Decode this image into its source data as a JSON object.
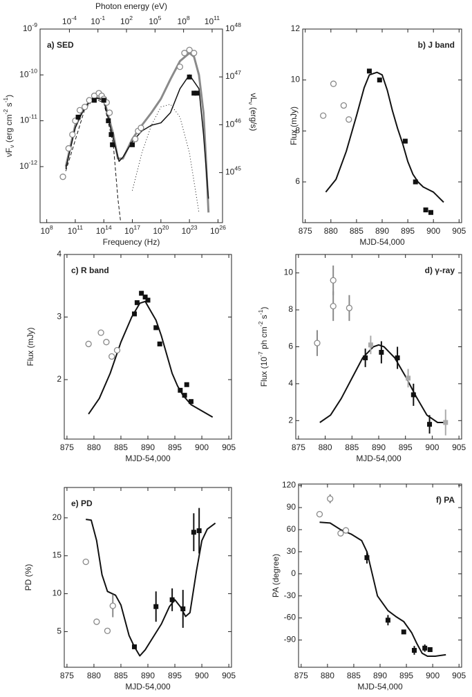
{
  "chart_data": [
    {
      "type": "scatter",
      "panel_label": "a) SED",
      "xlabel": "Frequency (Hz)",
      "ylabel": "νF_ν (erg cm^-2 s^-1)",
      "x2label": "Photon energy (eV)",
      "y2label": "νL_ν (erg/s)",
      "xlog": true,
      "ylog": true,
      "xlim": [
        20000000.0,
        3e+26
      ],
      "ylim": [
        6e-14,
        1e-09
      ],
      "x2lim": [
        8.3e-08,
        1240000000000.0
      ],
      "y2lim": [
        9e+43,
        1e+48
      ],
      "xticks": [
        {
          "value": 100000000.0,
          "label": "10^8"
        },
        {
          "value": 100000000000.0,
          "label": "10^11"
        },
        {
          "value": 100000000000000.0,
          "label": "10^14"
        },
        {
          "value": 1e+17,
          "label": "10^17"
        },
        {
          "value": 1e+20,
          "label": "10^20"
        },
        {
          "value": 1e+23,
          "label": "10^23"
        },
        {
          "value": 1e+26,
          "label": "10^26"
        }
      ],
      "x2ticks": [
        {
          "value": 0.0001,
          "label": "10^-4"
        },
        {
          "value": 0.1,
          "label": "10^-1"
        },
        {
          "value": 100,
          "label": "10^2"
        },
        {
          "value": 100000,
          "label": "10^5"
        },
        {
          "value": 100000000.0,
          "label": "10^8"
        },
        {
          "value": 100000000000.0,
          "label": "10^11"
        }
      ],
      "yticks": [
        {
          "value": 1e-12,
          "label": "10^-12"
        },
        {
          "value": 1e-11,
          "label": "10^-11"
        },
        {
          "value": 1e-10,
          "label": "10^-10"
        },
        {
          "value": 1e-09,
          "label": "10^-9"
        }
      ],
      "y2ticks": [
        {
          "value": 1e+45,
          "label": "10^45"
        },
        {
          "value": 1e+46,
          "label": "10^46"
        },
        {
          "value": 1e+47,
          "label": "10^47"
        },
        {
          "value": 1e+48,
          "label": "10^48"
        }
      ],
      "series": [
        {
          "mode": "line",
          "color": "#8a8a8a",
          "width": 3,
          "x": [
            10000000000.0,
            100000000000.0,
            1000000000000.0,
            10000000000000.0,
            100000000000000.0,
            1000000000000000.0,
            3000000000000000.0,
            1e+16,
            1e+17,
            1e+18,
            1e+19,
            1e+20,
            1e+21,
            1e+22,
            1e+23,
            3e+23,
            1e+24,
            3e+24,
            6e+24,
            1e+25
          ],
          "values": [
            1e-12,
            8e-12,
            2e-11,
            3.3e-11,
            3e-11,
            5e-12,
            1.5e-12,
            1.5e-12,
            4e-12,
            8e-12,
            1.5e-11,
            3e-11,
            8e-11,
            2e-10,
            3e-10,
            2.5e-10,
            1e-10,
            1.5e-11,
            1e-12,
            1e-13
          ]
        },
        {
          "mode": "line",
          "color": "#111",
          "width": 1.5,
          "x": [
            10000000000.0,
            100000000000.0,
            1000000000000.0,
            10000000000000.0,
            100000000000000.0,
            1000000000000000.0,
            4000000000000000.0,
            1e+16,
            1e+17,
            1e+18,
            1e+19,
            1e+20,
            1e+21,
            1e+22,
            1e+23,
            1e+24,
            3e+24,
            1e+25
          ],
          "values": [
            9e-13,
            7e-12,
            2e-11,
            3.2e-11,
            2.8e-11,
            4e-12,
            1.3e-12,
            1.6e-12,
            3.5e-12,
            6e-12,
            8e-12,
            9e-12,
            1.5e-11,
            5e-11,
            1e-10,
            5e-11,
            5e-12,
            2e-13
          ]
        },
        {
          "mode": "line",
          "color": "#111",
          "width": 1,
          "dash": "1,3",
          "x": [
            1e+17,
            1e+18,
            1e+19,
            1e+20,
            1e+21,
            1e+22,
            1e+23,
            1e+24
          ],
          "values": [
            3e-13,
            2e-12,
            8e-12,
            2e-11,
            2.3e-11,
            1.2e-11,
            2e-12,
            1e-13
          ]
        },
        {
          "mode": "line",
          "color": "#111",
          "width": 1,
          "dash": "5,3",
          "x": [
            10000000000.0,
            1000000000000.0,
            10000000000000.0,
            100000000000000.0,
            1000000000000000.0,
            3000000000000000.0,
            6000000000000000.0
          ],
          "values": [
            8e-13,
            1.8e-11,
            3e-11,
            2.5e-11,
            3e-12,
            2e-13,
            6e-14
          ]
        },
        {
          "mode": "marker",
          "marker": "open-circle",
          "color": "#888",
          "x": [
            5000000000.0,
            20000000000.0,
            50000000000.0,
            100000000000.0,
            300000000000.0,
            1000000000000.0,
            3000000000000.0,
            10000000000000.0,
            30000000000000.0,
            60000000000000.0,
            100000000000000.0,
            200000000000000.0,
            400000000000000.0,
            2e+17,
            4e+17,
            8e+17,
            1e+22,
            3e+22,
            1e+23,
            3e+23
          ],
          "values": [
            6e-13,
            2.5e-12,
            5e-12,
            1e-11,
            1.7e-11,
            2e-11,
            2.8e-11,
            3.5e-11,
            4e-11,
            3.5e-11,
            3e-11,
            2.5e-11,
            1.5e-11,
            4e-12,
            6e-12,
            7e-12,
            1.5e-10,
            3e-10,
            3.5e-10,
            3e-10
          ]
        },
        {
          "mode": "marker",
          "marker": "square",
          "color": "#111",
          "x": [
            200000000000.0,
            10000000000000.0,
            100000000000000.0,
            300000000000000.0,
            600000000000000.0,
            800000000000000.0,
            1e+17,
            1e+23,
            3e+23,
            6e+23
          ],
          "values": [
            1.2e-11,
            2.8e-11,
            2.8e-11,
            1e-11,
            5e-12,
            3e-12,
            3e-12,
            9e-11,
            4e-11,
            4e-11
          ]
        }
      ]
    },
    {
      "type": "scatter",
      "panel_label": "b) J band",
      "xlabel": "MJD-54,000",
      "ylabel": "Flux (mJy)",
      "xlim": [
        874.5,
        905.5
      ],
      "ylim": [
        4.4,
        12
      ],
      "xticks": [
        875,
        880,
        885,
        890,
        895,
        900,
        905
      ],
      "yticks": [
        6,
        8,
        10,
        12
      ],
      "series": [
        {
          "mode": "line",
          "color": "#111",
          "width": 2,
          "x": [
            879,
            881,
            883,
            885,
            886.5,
            887.5,
            889,
            890,
            891,
            892,
            893,
            894,
            895,
            896,
            897,
            898,
            899,
            900,
            901,
            902
          ],
          "values": [
            5.6,
            6.1,
            7.2,
            8.6,
            9.7,
            10.2,
            10.3,
            10.2,
            9.6,
            8.8,
            8.1,
            7.5,
            6.8,
            6.3,
            6.0,
            5.8,
            5.7,
            5.6,
            5.4,
            5.2
          ]
        },
        {
          "mode": "marker",
          "marker": "open-circle",
          "color": "#888",
          "x": [
            878.5,
            880.5,
            882.5,
            883.5
          ],
          "values": [
            8.6,
            9.85,
            9.0,
            8.45
          ]
        },
        {
          "mode": "marker",
          "marker": "square",
          "color": "#111",
          "x": [
            887.5,
            889.5,
            894.5,
            896.5,
            898.5,
            899.5
          ],
          "values": [
            10.35,
            10.0,
            7.6,
            6.0,
            4.9,
            4.8
          ]
        }
      ]
    },
    {
      "type": "scatter",
      "panel_label": "c) R band",
      "xlabel": "MJD-54,000",
      "ylabel": "Flux (mJy)",
      "xlim": [
        874.5,
        905.5
      ],
      "ylim": [
        1.05,
        4
      ],
      "xticks": [
        875,
        880,
        885,
        890,
        895,
        900,
        905
      ],
      "yticks": [
        2,
        3,
        4
      ],
      "series": [
        {
          "mode": "line",
          "color": "#111",
          "width": 2,
          "x": [
            879,
            881,
            883,
            885,
            887,
            888.5,
            889.5,
            890.5,
            891.5,
            892.5,
            893.5,
            894.5,
            895.5,
            896.5,
            898,
            900,
            902
          ],
          "values": [
            1.45,
            1.7,
            2.1,
            2.6,
            3.0,
            3.22,
            3.25,
            3.1,
            2.95,
            2.7,
            2.4,
            2.1,
            1.9,
            1.75,
            1.6,
            1.5,
            1.4
          ]
        },
        {
          "mode": "marker",
          "marker": "open-circle",
          "color": "#888",
          "x": [
            879,
            881.3,
            882.3,
            883.3,
            884.3
          ],
          "values": [
            2.57,
            2.75,
            2.6,
            2.37,
            2.47
          ]
        },
        {
          "mode": "marker",
          "marker": "square",
          "color": "#111",
          "x": [
            887.5,
            888,
            888.8,
            889.5,
            890,
            891.5,
            892.2,
            896,
            896.8,
            897.2,
            898
          ],
          "values": [
            3.05,
            3.23,
            3.38,
            3.32,
            3.27,
            2.83,
            2.57,
            1.83,
            1.75,
            1.92,
            1.65
          ]
        }
      ]
    },
    {
      "type": "scatter",
      "panel_label": "d) γ-ray",
      "xlabel": "MJD-54,000",
      "ylabel": "Flux (10^-7 ph cm^-2 s^-1)",
      "xlim": [
        874.5,
        905.5
      ],
      "ylim": [
        1.0,
        11
      ],
      "xticks": [
        875,
        880,
        885,
        890,
        895,
        900,
        905
      ],
      "yticks": [
        2,
        4,
        6,
        8,
        10
      ],
      "series": [
        {
          "mode": "line",
          "color": "#111",
          "width": 2,
          "x": [
            879,
            881,
            883,
            885,
            887,
            889,
            890,
            891,
            893,
            895,
            897,
            899,
            901,
            902.5
          ],
          "values": [
            1.9,
            2.3,
            3.2,
            4.3,
            5.4,
            6.0,
            6.1,
            6.0,
            5.4,
            4.4,
            3.3,
            2.3,
            1.9,
            1.9
          ]
        },
        {
          "mode": "marker",
          "marker": "open-circle",
          "color": "#888",
          "x": [
            878.5,
            881.5,
            881.5,
            884.5
          ],
          "values": [
            6.2,
            9.6,
            8.2,
            8.1
          ],
          "errors": [
            0.7,
            0.8,
            0.8,
            0.7
          ]
        },
        {
          "mode": "marker",
          "marker": "square",
          "color": "#aaa",
          "x": [
            888.5,
            895.5,
            902.5
          ],
          "values": [
            6.1,
            4.3,
            1.9
          ],
          "errors": [
            0.5,
            0.5,
            0.7
          ]
        },
        {
          "mode": "marker",
          "marker": "square",
          "color": "#111",
          "x": [
            887.5,
            890.5,
            893.5,
            896.5,
            899.5
          ],
          "values": [
            5.4,
            5.7,
            5.4,
            3.4,
            1.8
          ],
          "errors": [
            0.5,
            0.6,
            0.6,
            0.6,
            0.5
          ]
        }
      ]
    },
    {
      "type": "scatter",
      "panel_label": "e) PD",
      "xlabel": "MJD-54,000",
      "ylabel": "PD (%)",
      "xlim": [
        874.5,
        905.5
      ],
      "ylim": [
        0.3,
        24
      ],
      "xticks": [
        875,
        880,
        885,
        890,
        895,
        900,
        905
      ],
      "yticks": [
        5,
        10,
        15,
        20
      ],
      "series": [
        {
          "mode": "line",
          "color": "#111",
          "width": 2,
          "x": [
            878.5,
            879.5,
            880.5,
            881.5,
            882.5,
            884,
            885,
            886.5,
            887.5,
            888.5,
            889.5,
            891,
            892.5,
            894,
            895,
            896,
            897,
            897.8,
            899,
            900,
            901,
            902.5
          ],
          "values": [
            19.8,
            19.7,
            17,
            12.5,
            10.3,
            9.8,
            8.5,
            4.5,
            3.0,
            1.8,
            2.6,
            4.3,
            6.0,
            8.3,
            9.2,
            8.3,
            7.0,
            7.5,
            13,
            17,
            18.5,
            19.3
          ]
        },
        {
          "mode": "marker",
          "marker": "open-circle",
          "color": "#888",
          "x": [
            878.5,
            880.5,
            882.5,
            883.5
          ],
          "values": [
            14.2,
            6.3,
            5.1,
            8.4
          ],
          "errors": [
            null,
            null,
            null,
            1.5
          ]
        },
        {
          "mode": "marker",
          "marker": "square",
          "color": "#111",
          "x": [
            887.5,
            891.5,
            894.5,
            896.5,
            898.5,
            899.5
          ],
          "values": [
            3.0,
            8.3,
            9.2,
            8.0,
            18.1,
            18.3
          ],
          "errors": [
            null,
            2,
            1.5,
            2.5,
            2.5,
            3
          ]
        }
      ]
    },
    {
      "type": "scatter",
      "panel_label": "f) PA",
      "xlabel": "MJD-54,000",
      "ylabel": "PA (degree)",
      "xlim": [
        874.5,
        905.5
      ],
      "ylim": [
        -127,
        122
      ],
      "xticks": [
        875,
        880,
        885,
        890,
        895,
        900,
        905
      ],
      "yticks": [
        -90,
        -60,
        -30,
        0,
        30,
        60,
        90,
        120
      ],
      "series": [
        {
          "mode": "line",
          "color": "#111",
          "width": 2,
          "x": [
            878.5,
            880.5,
            882.5,
            884.5,
            886.5,
            887.5,
            888.5,
            889.5,
            890.5,
            891.5,
            893,
            894.5,
            896,
            897,
            898,
            899,
            900.5,
            902.5
          ],
          "values": [
            70,
            69,
            60,
            54,
            45,
            30,
            0,
            -30,
            -40,
            -50,
            -58,
            -65,
            -80,
            -95,
            -108,
            -112,
            -112,
            -110
          ]
        },
        {
          "mode": "marker",
          "marker": "open-circle",
          "color": "#888",
          "x": [
            878.5,
            880.5,
            882.5,
            883.5
          ],
          "values": [
            81,
            102,
            55,
            59
          ],
          "errors": [
            null,
            6,
            null,
            null
          ]
        },
        {
          "mode": "marker",
          "marker": "square",
          "color": "#111",
          "x": [
            887.5,
            891.5,
            894.5,
            896.5,
            898.5,
            899.5
          ],
          "values": [
            22,
            -63,
            -79,
            -104,
            -101,
            -103
          ],
          "errors": [
            8,
            7,
            null,
            6,
            5,
            null
          ]
        }
      ]
    }
  ]
}
